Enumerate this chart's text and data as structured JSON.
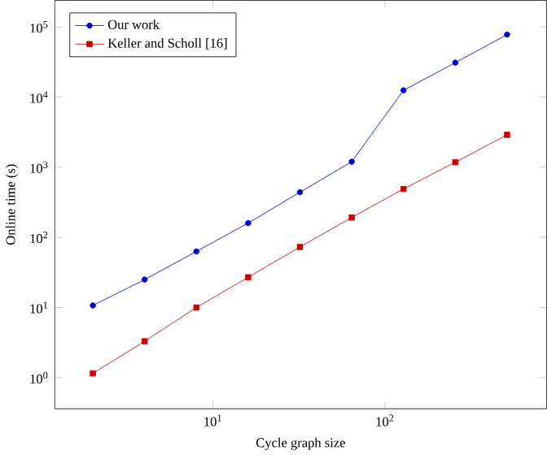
{
  "chart_data": {
    "type": "line",
    "xlabel": "Cycle graph size",
    "ylabel": "Online time (s)",
    "x": [
      2,
      4,
      8,
      16,
      32,
      64,
      128,
      256,
      512
    ],
    "series": [
      {
        "name": "Our work",
        "color": "#0000cc",
        "marker": "circle",
        "values": [
          10.7,
          25,
          63,
          160,
          440,
          1200,
          12500,
          31000,
          78000
        ]
      },
      {
        "name": "Keller and Scholl [16]",
        "color": "#cc0000",
        "marker": "square",
        "values": [
          1.15,
          3.3,
          10,
          27,
          73,
          192,
          490,
          1180,
          2900
        ]
      }
    ],
    "log": "xy",
    "legend": "top left",
    "xlim": [
      1.2,
      870
    ],
    "ylim": [
      0.36,
      240000
    ],
    "xticks": [
      {
        "value": 10,
        "label": "10$^{1}$"
      },
      {
        "value": 100,
        "label": "10$^{2}$"
      }
    ],
    "yticks": [
      {
        "value": 1,
        "label": "10$^{0}$"
      },
      {
        "value": 10,
        "label": "10$^{1}$"
      },
      {
        "value": 100,
        "label": "10$^{2}$"
      },
      {
        "value": 1000,
        "label": "10$^{3}$"
      },
      {
        "value": 10000,
        "label": "10$^{4}$"
      },
      {
        "value": 100000,
        "label": "10$^{5}$"
      }
    ]
  }
}
